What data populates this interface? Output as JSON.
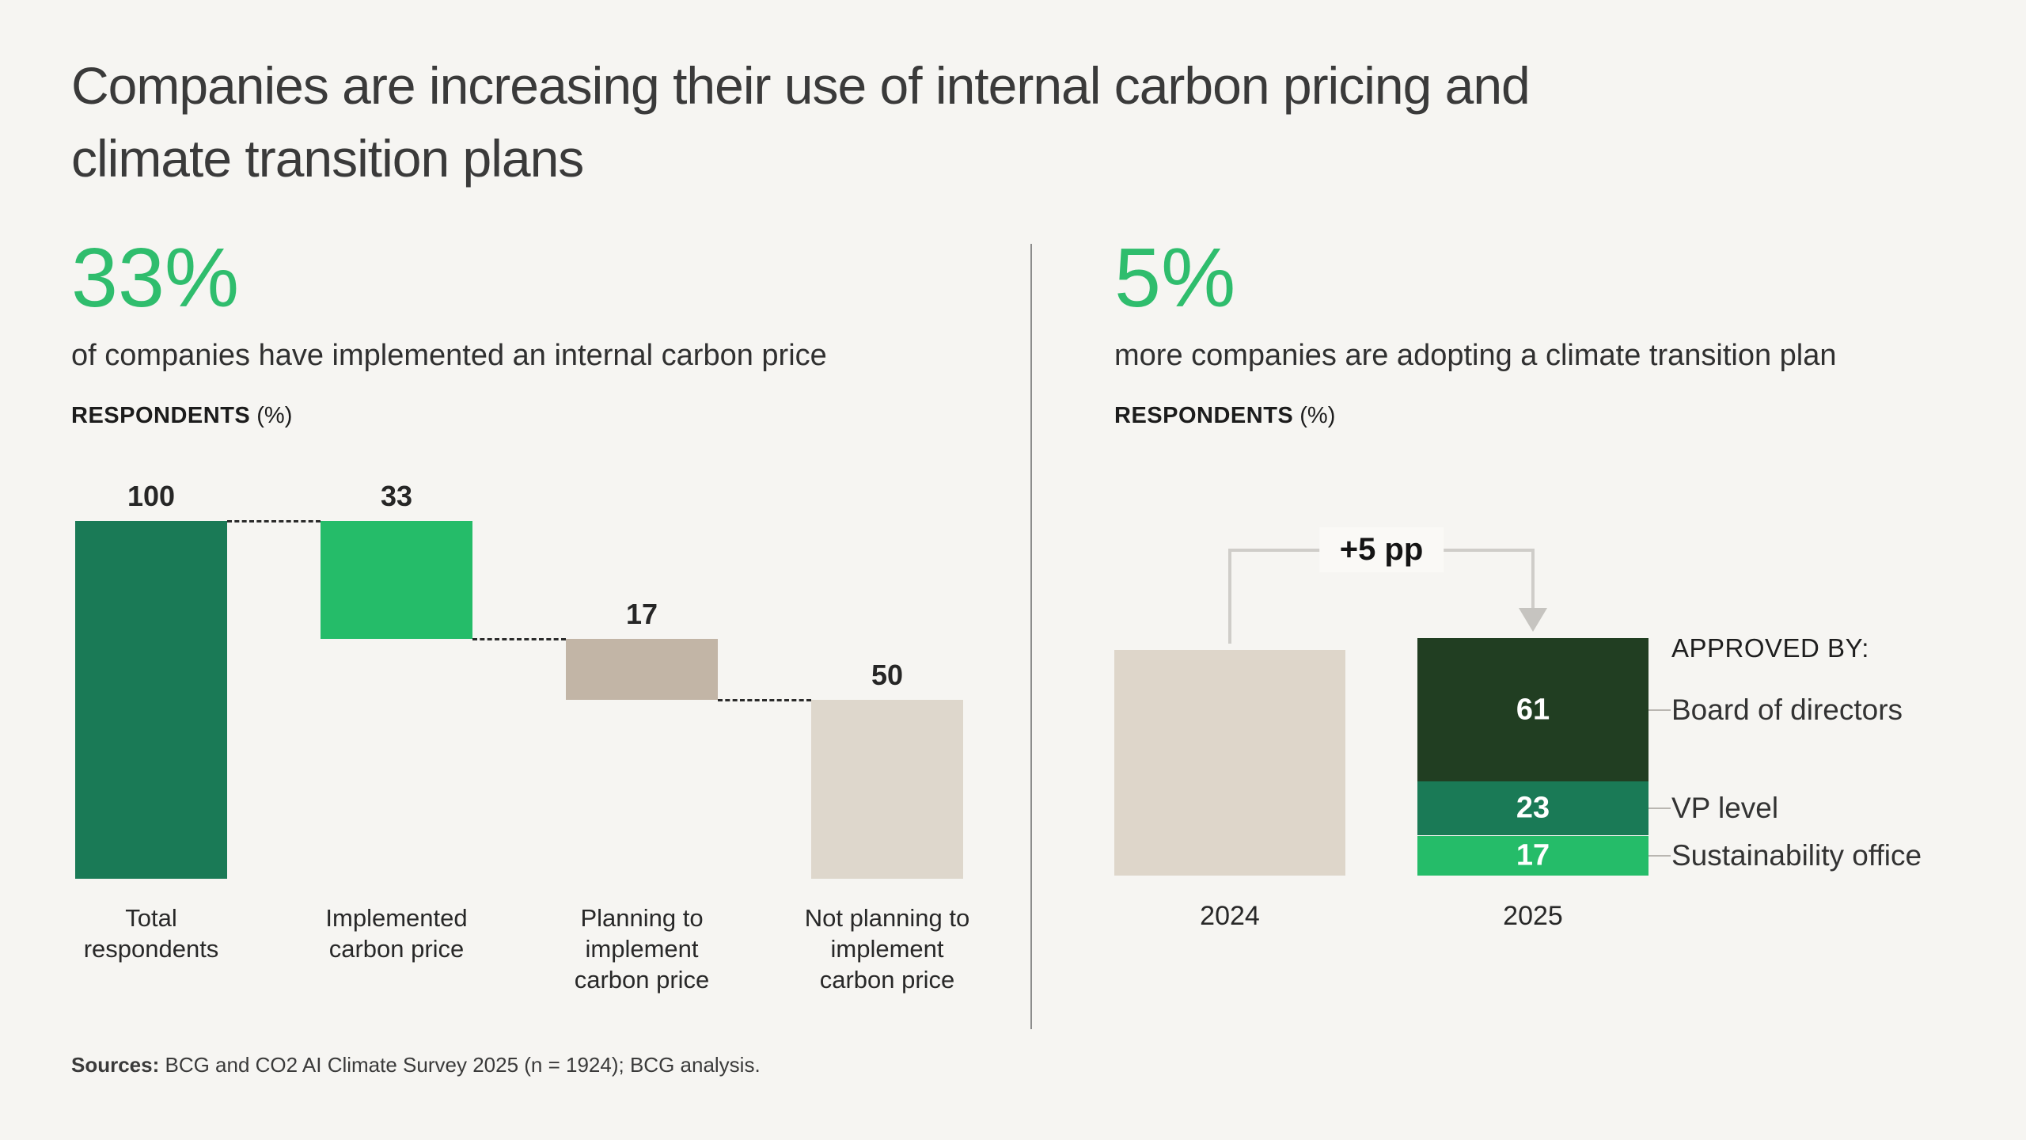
{
  "page": {
    "title_line1": "Companies are increasing their use of internal carbon pricing and",
    "title_line2": "climate transition plans",
    "background_color": "#f6f5f2",
    "accent_green": "#2fbd6d",
    "sources_label": "Sources:",
    "sources_text": " BCG and CO2 AI Climate Survey 2025 (n = 1924); BCG analysis."
  },
  "left_panel": {
    "stat": "33%",
    "subtitle": "of companies have implemented an internal carbon price",
    "axis_label": "RESPONDENTS",
    "axis_label_suffix": "(%)"
  },
  "right_panel": {
    "stat": "5%",
    "subtitle": "more companies are adopting a climate transition plan",
    "axis_label": "RESPONDENTS",
    "axis_label_suffix": "(%)"
  },
  "chart_data": [
    {
      "type": "bar",
      "subtype": "waterfall",
      "title": "33% of companies have implemented an internal carbon price",
      "ylabel": "RESPONDENTS (%)",
      "ylim": [
        0,
        100
      ],
      "grid": false,
      "categories": [
        [
          "Total",
          "respondents"
        ],
        [
          "Implemented",
          "carbon price"
        ],
        [
          "Planning to",
          "implement",
          "carbon price"
        ],
        [
          "Not planning to",
          "implement",
          "carbon price"
        ]
      ],
      "values": [
        100,
        33,
        17,
        50
      ],
      "cumulative_spans": [
        [
          0,
          100
        ],
        [
          67,
          100
        ],
        [
          50,
          67
        ],
        [
          0,
          50
        ]
      ],
      "value_labels": [
        "100",
        "33",
        "17",
        "50"
      ],
      "colors": [
        "#1a7a56",
        "#25bc69",
        "#c2b5a6",
        "#ded7cc"
      ],
      "connector_style": "dashed"
    },
    {
      "type": "bar",
      "subtype": "stacked-comparison",
      "title": "5% more companies are adopting a climate transition plan",
      "ylabel": "RESPONDENTS (%)",
      "grid": false,
      "categories": [
        "2024",
        "2025"
      ],
      "annotation": "+5 pp",
      "legend_title": "APPROVED BY:",
      "legend_position": "right",
      "bars": [
        {
          "label": "2024",
          "total": 96,
          "value_shown": false,
          "segments": [
            {
              "name": "",
              "value": 96,
              "color": "#ded6ca",
              "show_value": false
            }
          ]
        },
        {
          "label": "2025",
          "total": 101,
          "value_shown": true,
          "segments": [
            {
              "name": "Board of directors",
              "value": 61,
              "color": "#213e22",
              "show_value": true
            },
            {
              "name": "VP level",
              "value": 23,
              "color": "#1a7a56",
              "show_value": true
            },
            {
              "name": "Sustainability office",
              "value": 17,
              "color": "#25bc69",
              "show_value": true
            }
          ]
        }
      ]
    }
  ]
}
